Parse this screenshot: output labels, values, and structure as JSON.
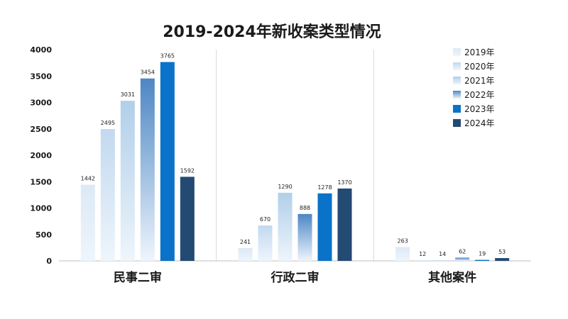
{
  "chart_data": {
    "type": "bar",
    "title": "2019-2024年新收案类型情况",
    "categories": [
      "民事二审",
      "行政二审",
      "其他案件"
    ],
    "series": [
      {
        "name": "2019年",
        "values": [
          1442,
          241,
          263
        ],
        "color": "#dce9f6"
      },
      {
        "name": "2020年",
        "values": [
          2495,
          670,
          12
        ],
        "color": "#c2d9ef"
      },
      {
        "name": "2021年",
        "values": [
          3031,
          1290,
          14
        ],
        "color": "#b1cfe9"
      },
      {
        "name": "2022年",
        "values": [
          3454,
          888,
          62
        ],
        "color": "#4d86c4"
      },
      {
        "name": "2023年",
        "values": [
          3765,
          1278,
          19
        ],
        "color": "#0a72c8"
      },
      {
        "name": "2024年",
        "values": [
          1592,
          1370,
          53
        ],
        "color": "#234a73"
      }
    ],
    "ylim": [
      0,
      4000
    ],
    "yticks": [
      0,
      500,
      1000,
      1500,
      2000,
      2500,
      3000,
      3500,
      4000
    ],
    "xlabel": "",
    "ylabel": "",
    "legend_position": "top-right",
    "grid": false
  }
}
